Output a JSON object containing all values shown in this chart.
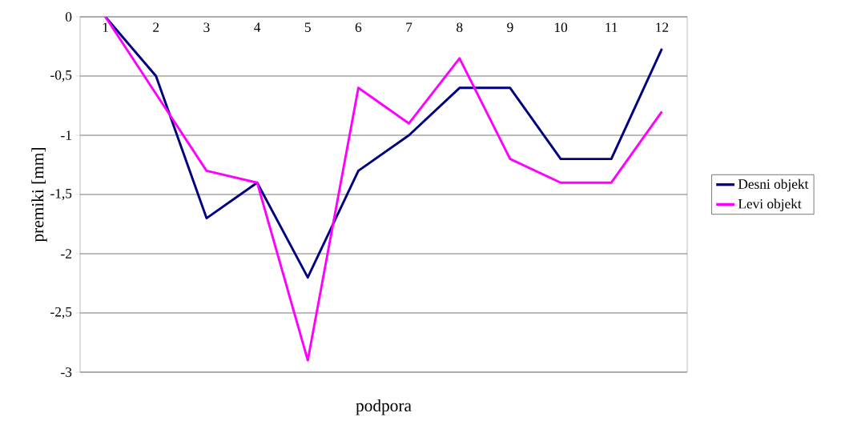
{
  "chart_data": {
    "type": "line",
    "xlabel": "podpora",
    "ylabel": "premiki [mm]",
    "categories": [
      "1",
      "2",
      "3",
      "4",
      "5",
      "6",
      "7",
      "8",
      "9",
      "10",
      "11",
      "12"
    ],
    "series": [
      {
        "name": "Desni objekt",
        "color": "#000080",
        "values": [
          0,
          -0.5,
          -1.7,
          -1.4,
          -2.2,
          -1.3,
          -1.0,
          -0.6,
          -0.6,
          -1.2,
          -1.2,
          -0.27
        ]
      },
      {
        "name": "Levi objekt",
        "color": "#ff00ff",
        "values": [
          0,
          -0.65,
          -1.3,
          -1.4,
          -2.9,
          -0.6,
          -0.9,
          -0.35,
          -1.2,
          -1.4,
          -1.4,
          -0.8
        ]
      }
    ],
    "ylim": [
      -3,
      0
    ],
    "yticks": [
      0,
      {
        "value": -0.5,
        "label": "-0,5"
      },
      -1,
      {
        "value": -1.5,
        "label": "-1,5"
      },
      -2,
      {
        "value": -2.5,
        "label": "-2,5"
      },
      -3
    ],
    "grid": "y",
    "legend": "right"
  }
}
